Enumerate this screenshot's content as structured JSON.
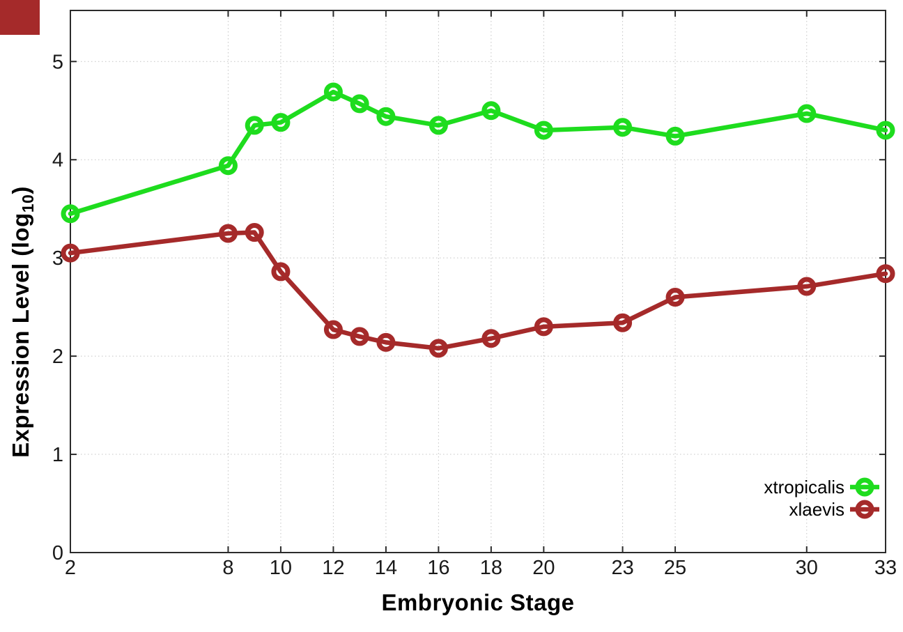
{
  "page": {
    "background": "#ffffff",
    "corner_marker_color": "#a52a2a"
  },
  "chart_data": {
    "type": "line",
    "title": "",
    "xlabel": "Embryonic Stage",
    "ylabel": "Expression Level (log10)",
    "ylabel_parts": {
      "main": "Expression Level (log",
      "sub": "10",
      "end": ")"
    },
    "x": [
      2,
      8,
      9,
      10,
      12,
      13,
      14,
      16,
      18,
      20,
      23,
      25,
      30,
      33
    ],
    "series": [
      {
        "name": "xtropicalis",
        "color": "#1edc1e",
        "values": [
          3.45,
          3.94,
          4.35,
          4.38,
          4.69,
          4.57,
          4.44,
          4.35,
          4.5,
          4.3,
          4.33,
          4.24,
          4.47,
          4.3
        ]
      },
      {
        "name": "xlaevis",
        "color": "#a52a2a",
        "values": [
          3.05,
          3.25,
          3.26,
          2.86,
          2.27,
          2.2,
          2.14,
          2.08,
          2.18,
          2.3,
          2.34,
          2.6,
          2.71,
          2.84
        ]
      }
    ],
    "xlim": [
      2,
      33
    ],
    "ylim": [
      0,
      5.52
    ],
    "x_ticks": [
      2,
      8,
      10,
      12,
      14,
      16,
      18,
      20,
      23,
      25,
      30,
      33
    ],
    "x_tick_labels": [
      "2",
      "8",
      "10",
      "12",
      "14",
      "16",
      "18",
      "20",
      "23",
      "25",
      "30",
      "33"
    ],
    "y_ticks": [
      0,
      1,
      2,
      3,
      4,
      5
    ],
    "y_tick_labels": [
      "0",
      "1",
      "2",
      "3",
      "4",
      "5"
    ],
    "grid": true,
    "grid_color": "#c4c4c4",
    "border_color": "#2b2b2b",
    "tick_label_color": "#1a1a1a",
    "legend_position": "inside-bottom-right"
  }
}
